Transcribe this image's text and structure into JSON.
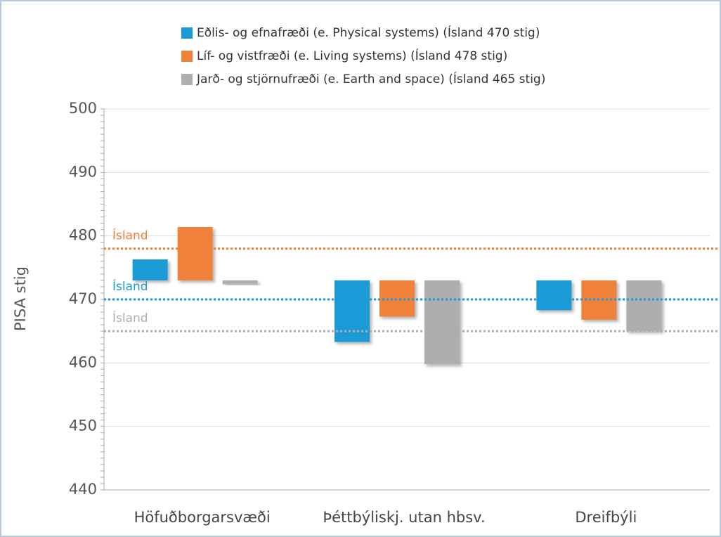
{
  "chart_data": {
    "type": "floating-bar",
    "ylabel": "PISA stig",
    "baseline": 473,
    "categories": [
      "Höfuðborgarsvæði",
      "Þéttbýliskj. utan hbsv.",
      "Dreifbýli"
    ],
    "series": [
      {
        "name": "Eðlis- og efnafræði (e. Physical systems) (Ísland 470 stig)",
        "color": "#1a9ad6",
        "values": [
          476.3,
          463.3,
          468.3
        ]
      },
      {
        "name": "Líf- og vistfræði (e. Living systems) (Ísland 478 stig)",
        "color": "#f0813a",
        "values": [
          481.4,
          467.3,
          466.8
        ]
      },
      {
        "name": "Jarð- og stjörnufræði (e. Earth and space) (Ísland 465 stig)",
        "color": "#aeaeb0",
        "values": [
          472.4,
          459.8,
          465.0
        ]
      }
    ],
    "reference_lines": [
      {
        "label": "Ísland",
        "value": 478,
        "color": "#f0813a"
      },
      {
        "label": "Ísland",
        "value": 470,
        "color": "#1a9ad6"
      },
      {
        "label": "Ísland",
        "value": 465,
        "color": "#aeaeb0"
      }
    ],
    "ylim": [
      440,
      500
    ],
    "yticks": [
      440,
      450,
      460,
      470,
      480,
      490,
      500
    ],
    "grid": true
  }
}
